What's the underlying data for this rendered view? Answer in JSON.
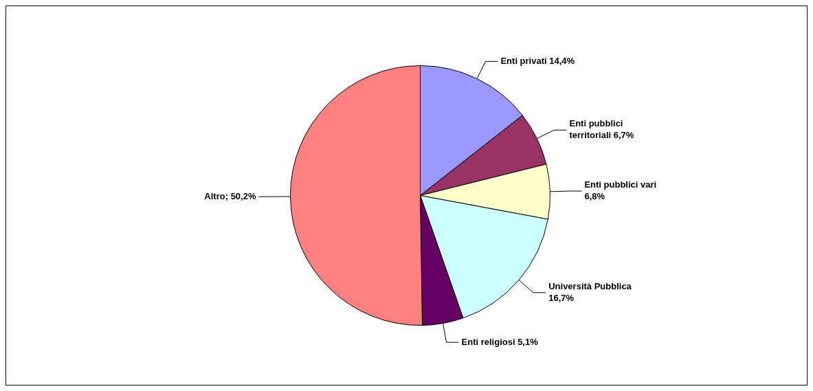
{
  "chart_data": {
    "type": "pie",
    "categories": [
      "Enti privati",
      "Enti pubblici territoriali",
      "Enti pubblici vari",
      "Università Pubblica",
      "Enti religiosi",
      "Altro"
    ],
    "values": [
      14.4,
      6.7,
      6.8,
      16.7,
      5.1,
      50.2
    ],
    "value_labels": [
      "14,4%",
      "6,7%",
      "6,8%",
      "16,7%",
      "5,1%",
      "50,2%"
    ],
    "colors": [
      "#9999ff",
      "#993366",
      "#ffffcc",
      "#ccffff",
      "#660066",
      "#ff8080"
    ],
    "legend": false
  }
}
